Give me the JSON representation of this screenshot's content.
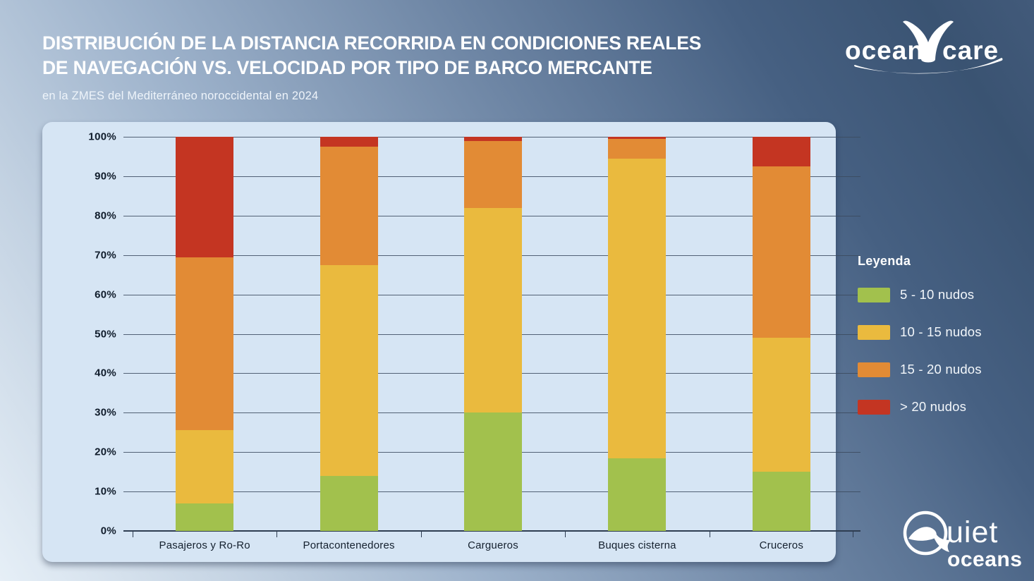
{
  "header": {
    "title_line1": "DISTRIBUCIÓN DE LA DISTANCIA RECORRIDA EN CONDICIONES REALES",
    "title_line2": "DE NAVEGACIÓN VS. VELOCIDAD POR TIPO DE BARCO MERCANTE",
    "subtitle": "en la ZMES del Mediterráneo noroccidental en 2024"
  },
  "logos": {
    "oceancare": {
      "word_left": "ocean",
      "word_right": "care"
    },
    "quietoceans": {
      "word_top": "uiet",
      "word_bottom": "oceans"
    }
  },
  "legend": {
    "title": "Leyenda",
    "position": "right",
    "items": [
      {
        "label": "5 - 10 nudos",
        "color": "#a2c14d"
      },
      {
        "label": "10 - 15 nudos",
        "color": "#eaba3e"
      },
      {
        "label": "15 - 20 nudos",
        "color": "#e28b35"
      },
      {
        "label": "> 20 nudos",
        "color": "#c43522"
      }
    ]
  },
  "chart_data": {
    "type": "bar",
    "subtype": "stacked-percent-column",
    "categories": [
      "Pasajeros y Ro-Ro",
      "Portacontenedores",
      "Cargueros",
      "Buques cisterna",
      "Cruceros"
    ],
    "series": [
      {
        "name": "5 - 10 nudos",
        "color": "#a2c14d",
        "values": [
          7,
          14,
          30,
          18.5,
          15
        ]
      },
      {
        "name": "10 - 15 nudos",
        "color": "#eaba3e",
        "values": [
          18.5,
          53.5,
          52,
          76,
          34
        ]
      },
      {
        "name": "15 - 20 nudos",
        "color": "#e28b35",
        "values": [
          44,
          30,
          17,
          5,
          43.5
        ]
      },
      {
        "name": "> 20 nudos",
        "color": "#c43522",
        "values": [
          30.5,
          2.5,
          1,
          0.5,
          7.5
        ]
      }
    ],
    "y_ticks": [
      "0%",
      "10%",
      "20%",
      "30%",
      "40%",
      "50%",
      "60%",
      "70%",
      "80%",
      "90%",
      "100%"
    ],
    "ylim": [
      0,
      100
    ],
    "xlabel": "",
    "ylabel": "",
    "grid": true,
    "plot_background": "#d6e5f4",
    "legend_position": "right"
  },
  "colors": {
    "accent_green": "#a2c14d",
    "accent_yellow": "#eaba3e",
    "accent_orange": "#e28b35",
    "accent_red": "#c43522",
    "panel_bg": "#d6e5f4",
    "text_light": "#ffffff",
    "text_dark": "#14202e"
  }
}
